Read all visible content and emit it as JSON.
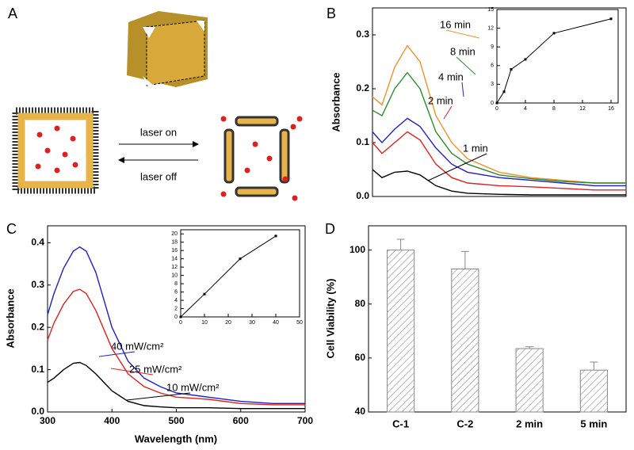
{
  "diagram": {
    "panel": "A",
    "laser_on": "laser on",
    "laser_off": "laser off"
  },
  "chart_data": [
    {
      "type": "line",
      "panel": "B",
      "ylabel": "Absorbance",
      "x": [
        300,
        315,
        335,
        355,
        375,
        400,
        425,
        450,
        500,
        550,
        600,
        650,
        700
      ],
      "xlim": [
        300,
        700
      ],
      "ylim": [
        0,
        0.35
      ],
      "yticks": [
        {
          "value": 0,
          "label": "0.0"
        },
        0.1,
        0.2,
        0.3
      ],
      "series": [
        {
          "name": "16 min",
          "color": "#f0932b",
          "values": [
            0.185,
            0.17,
            0.24,
            0.28,
            0.25,
            0.15,
            0.1,
            0.07,
            0.045,
            0.035,
            0.03,
            0.025,
            0.025
          ]
        },
        {
          "name": "8 min",
          "color": "#2e8b2e",
          "values": [
            0.16,
            0.15,
            0.2,
            0.23,
            0.2,
            0.12,
            0.08,
            0.06,
            0.04,
            0.033,
            0.028,
            0.025,
            0.025
          ]
        },
        {
          "name": "4 min",
          "color": "#1f1fc8",
          "values": [
            0.12,
            0.1,
            0.125,
            0.145,
            0.13,
            0.09,
            0.06,
            0.045,
            0.035,
            0.03,
            0.025,
            0.02,
            0.02
          ]
        },
        {
          "name": "2 min",
          "color": "#e02020",
          "values": [
            0.1,
            0.08,
            0.1,
            0.12,
            0.105,
            0.06,
            0.035,
            0.025,
            0.02,
            0.018,
            0.015,
            0.012,
            0.012
          ]
        },
        {
          "name": "1 min",
          "color": "#000000",
          "values": [
            0.05,
            0.035,
            0.045,
            0.047,
            0.04,
            0.02,
            0.01,
            0.006,
            0.004,
            0.003,
            0.003,
            0.003,
            0.003
          ]
        }
      ],
      "inset": {
        "type": "line",
        "x": [
          0,
          1,
          2,
          4,
          8,
          16
        ],
        "values": [
          0,
          1.8,
          5.4,
          7,
          11.2,
          13.5
        ],
        "color": "#000000",
        "xlim": [
          0,
          17
        ],
        "xticks": [
          0,
          4,
          8,
          12,
          16
        ],
        "ylim": [
          0,
          15
        ],
        "yticks": [
          0,
          3,
          6,
          9,
          12,
          15
        ]
      }
    },
    {
      "type": "line",
      "panel": "C",
      "ylabel": "Absorbance",
      "xlabel": "Wavelength (nm)",
      "x": [
        300,
        310,
        325,
        340,
        350,
        360,
        375,
        400,
        425,
        450,
        475,
        500,
        550,
        600,
        650,
        700
      ],
      "xlim": [
        300,
        700
      ],
      "xticks": [
        300,
        400,
        500,
        600,
        700
      ],
      "ylim": [
        0,
        0.44
      ],
      "yticks": [
        {
          "value": 0,
          "label": "0.0"
        },
        0.1,
        0.2,
        0.3,
        0.4
      ],
      "series": [
        {
          "name": "40 mW/cm²",
          "color": "#1f1fc8",
          "values": [
            0.23,
            0.28,
            0.34,
            0.38,
            0.39,
            0.38,
            0.33,
            0.2,
            0.12,
            0.08,
            0.06,
            0.045,
            0.035,
            0.025,
            0.02,
            0.02
          ]
        },
        {
          "name": "25 mW/cm²",
          "color": "#e02020",
          "values": [
            0.17,
            0.21,
            0.255,
            0.285,
            0.29,
            0.28,
            0.24,
            0.15,
            0.09,
            0.06,
            0.045,
            0.035,
            0.03,
            0.02,
            0.017,
            0.017
          ]
        },
        {
          "name": "10 mW/cm²",
          "color": "#000000",
          "values": [
            0.07,
            0.08,
            0.1,
            0.115,
            0.117,
            0.11,
            0.09,
            0.05,
            0.025,
            0.015,
            0.012,
            0.01,
            0.01,
            0.008,
            0.008,
            0.008
          ]
        }
      ],
      "inset": {
        "type": "line",
        "x": [
          0,
          10,
          25,
          40
        ],
        "values": [
          0,
          5.5,
          14,
          19.5
        ],
        "color": "#000000",
        "xlim": [
          0,
          50
        ],
        "xticks": [
          0,
          10,
          20,
          30,
          40,
          50
        ],
        "ylim": [
          0,
          21
        ],
        "yticks": [
          0,
          2,
          4,
          6,
          8,
          10,
          12,
          14,
          16,
          18,
          20
        ]
      }
    },
    {
      "type": "bar",
      "panel": "D",
      "ylabel": "Cell Viability (%)",
      "categories": [
        "C-1",
        "C-2",
        "2 min",
        "5 min"
      ],
      "values": [
        100,
        93,
        63.5,
        55.5
      ],
      "errors": [
        4,
        6.5,
        0.7,
        3
      ],
      "color": "#888888",
      "ylim": [
        40,
        109
      ],
      "yticks": [
        40,
        60,
        80,
        100
      ]
    }
  ]
}
